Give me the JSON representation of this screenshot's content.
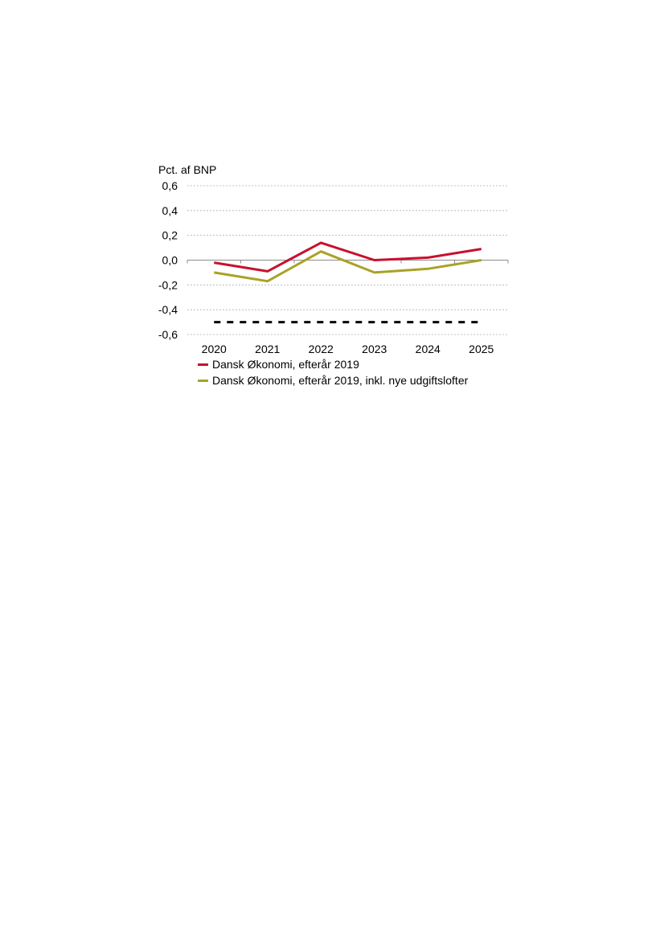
{
  "chart_data": {
    "type": "line",
    "ylabel": "Pct. af BNP",
    "xlabel": "",
    "title": "",
    "categories": [
      "2020",
      "2021",
      "2022",
      "2023",
      "2024",
      "2025"
    ],
    "ylim": [
      -0.6,
      0.6
    ],
    "yticks": [
      0.6,
      0.4,
      0.2,
      0.0,
      -0.2,
      -0.4,
      -0.6
    ],
    "ytick_labels": [
      "0,6",
      "0,4",
      "0,2",
      "0,0",
      "-0,2",
      "-0,4",
      "-0,6"
    ],
    "grid": true,
    "legend_position": "bottom",
    "series": [
      {
        "name": "Dansk Økonomi, efterår 2019",
        "values": [
          -0.02,
          -0.09,
          0.14,
          0.0,
          0.02,
          0.09
        ],
        "color": "#c8102e",
        "style": "solid"
      },
      {
        "name": "Dansk Økonomi, efterår 2019, inkl. nye udgiftslofter",
        "values": [
          -0.1,
          -0.17,
          0.07,
          -0.1,
          -0.07,
          0.0
        ],
        "color": "#a9a227",
        "style": "solid"
      },
      {
        "values": [
          -0.5,
          -0.5,
          -0.5,
          -0.5,
          -0.5,
          -0.5
        ],
        "color": "#000000",
        "style": "dashed"
      }
    ]
  }
}
